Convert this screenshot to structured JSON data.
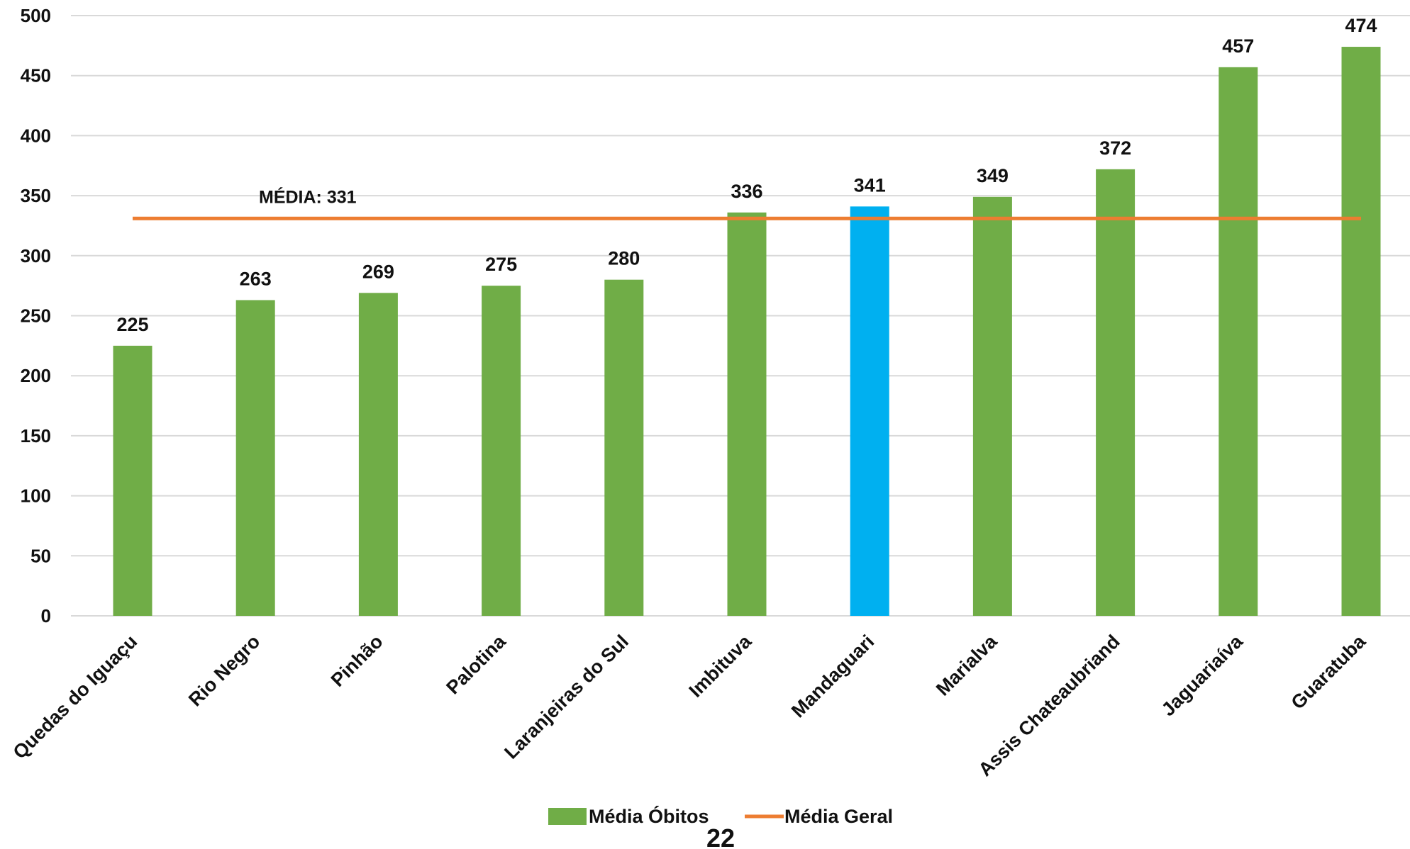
{
  "chart_data": {
    "type": "bar",
    "categories": [
      "Quedas do Iguaçu",
      "Rio Negro",
      "Pinhão",
      "Palotina",
      "Laranjeiras do Sul",
      "Imbituva",
      "Mandaguari",
      "Marialva",
      "Assis Chateaubriand",
      "Jaguariaíva",
      "Guaratuba"
    ],
    "series": [
      {
        "name": "Média Óbitos",
        "type": "bar",
        "values": [
          225,
          263,
          269,
          275,
          280,
          336,
          341,
          349,
          372,
          457,
          474
        ],
        "color": "#70ad47",
        "highlight_index": 6,
        "highlight_color": "#00b0f0"
      },
      {
        "name": "Média Geral",
        "type": "line",
        "value": 331,
        "color": "#ed7d31"
      }
    ],
    "data_labels": [
      "225",
      "263",
      "269",
      "275",
      "280",
      "336",
      "341",
      "349",
      "372",
      "457",
      "474"
    ],
    "annotation": "MÉDIA: 331",
    "yticks": [
      "0",
      "50",
      "100",
      "150",
      "200",
      "250",
      "300",
      "350",
      "400",
      "450",
      "500"
    ],
    "ylim": [
      0,
      500
    ],
    "grid": true,
    "legend_position": "bottom-center"
  },
  "page_number": "22"
}
